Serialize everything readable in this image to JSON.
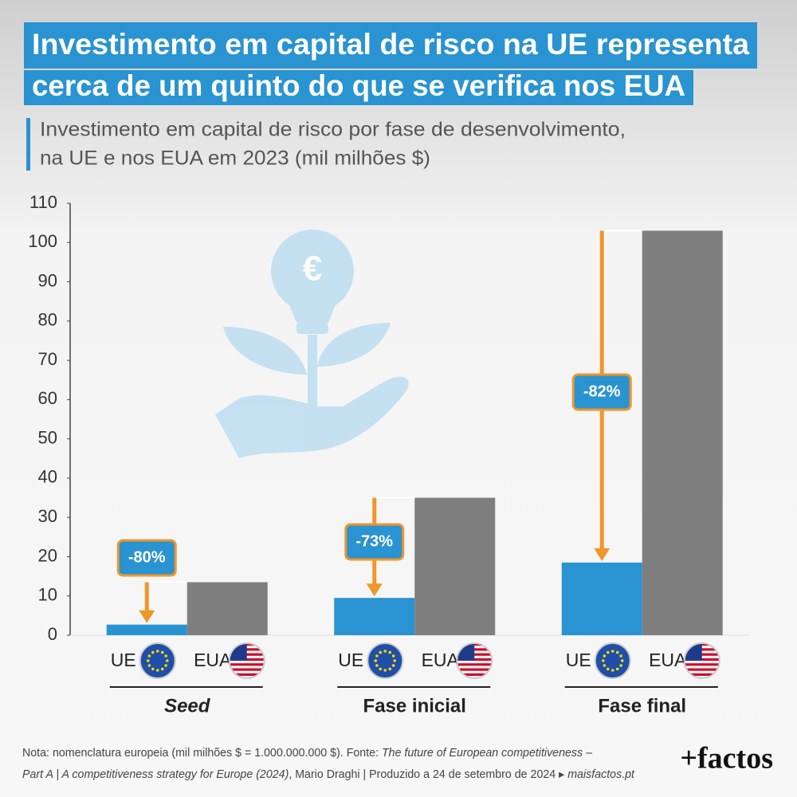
{
  "chart_data": {
    "type": "bar",
    "title": [
      "Investimento em capital de risco na UE representa",
      "cerca de um quinto do que se verifica nos EUA"
    ],
    "subtitle": [
      "Investimento em capital de risco por fase de desenvolvimento,",
      "na UE e nos EUA em 2023 (mil milhões $)"
    ],
    "categories": [
      "Seed",
      "Fase inicial",
      "Fase final"
    ],
    "series": [
      {
        "name": "UE",
        "color": "#2a93d1",
        "values": [
          2.7,
          9.5,
          18.5
        ]
      },
      {
        "name": "EUA",
        "color": "#7f7f7f",
        "values": [
          13.5,
          35,
          103
        ]
      }
    ],
    "annotations": [
      "-80%",
      "-73%",
      "-82%"
    ],
    "ylim": [
      0,
      110
    ],
    "yticks": [
      0,
      10,
      20,
      30,
      40,
      50,
      60,
      70,
      80,
      90,
      100,
      110
    ],
    "grid": false,
    "icon_symbol": "€",
    "footnote": [
      [
        "Nota: nomenclatura europeia (mil milhões $ = 1.000.000.000 $). Fonte: ",
        "The future of European competitiveness –"
      ],
      [
        "Part A | A competitiveness strategy for Europe (2024)",
        ", Mario Draghi | Produzido a 24 de setembro de 2024 ▸ ",
        "maisfactos.pt"
      ]
    ],
    "logo": "+factos"
  }
}
